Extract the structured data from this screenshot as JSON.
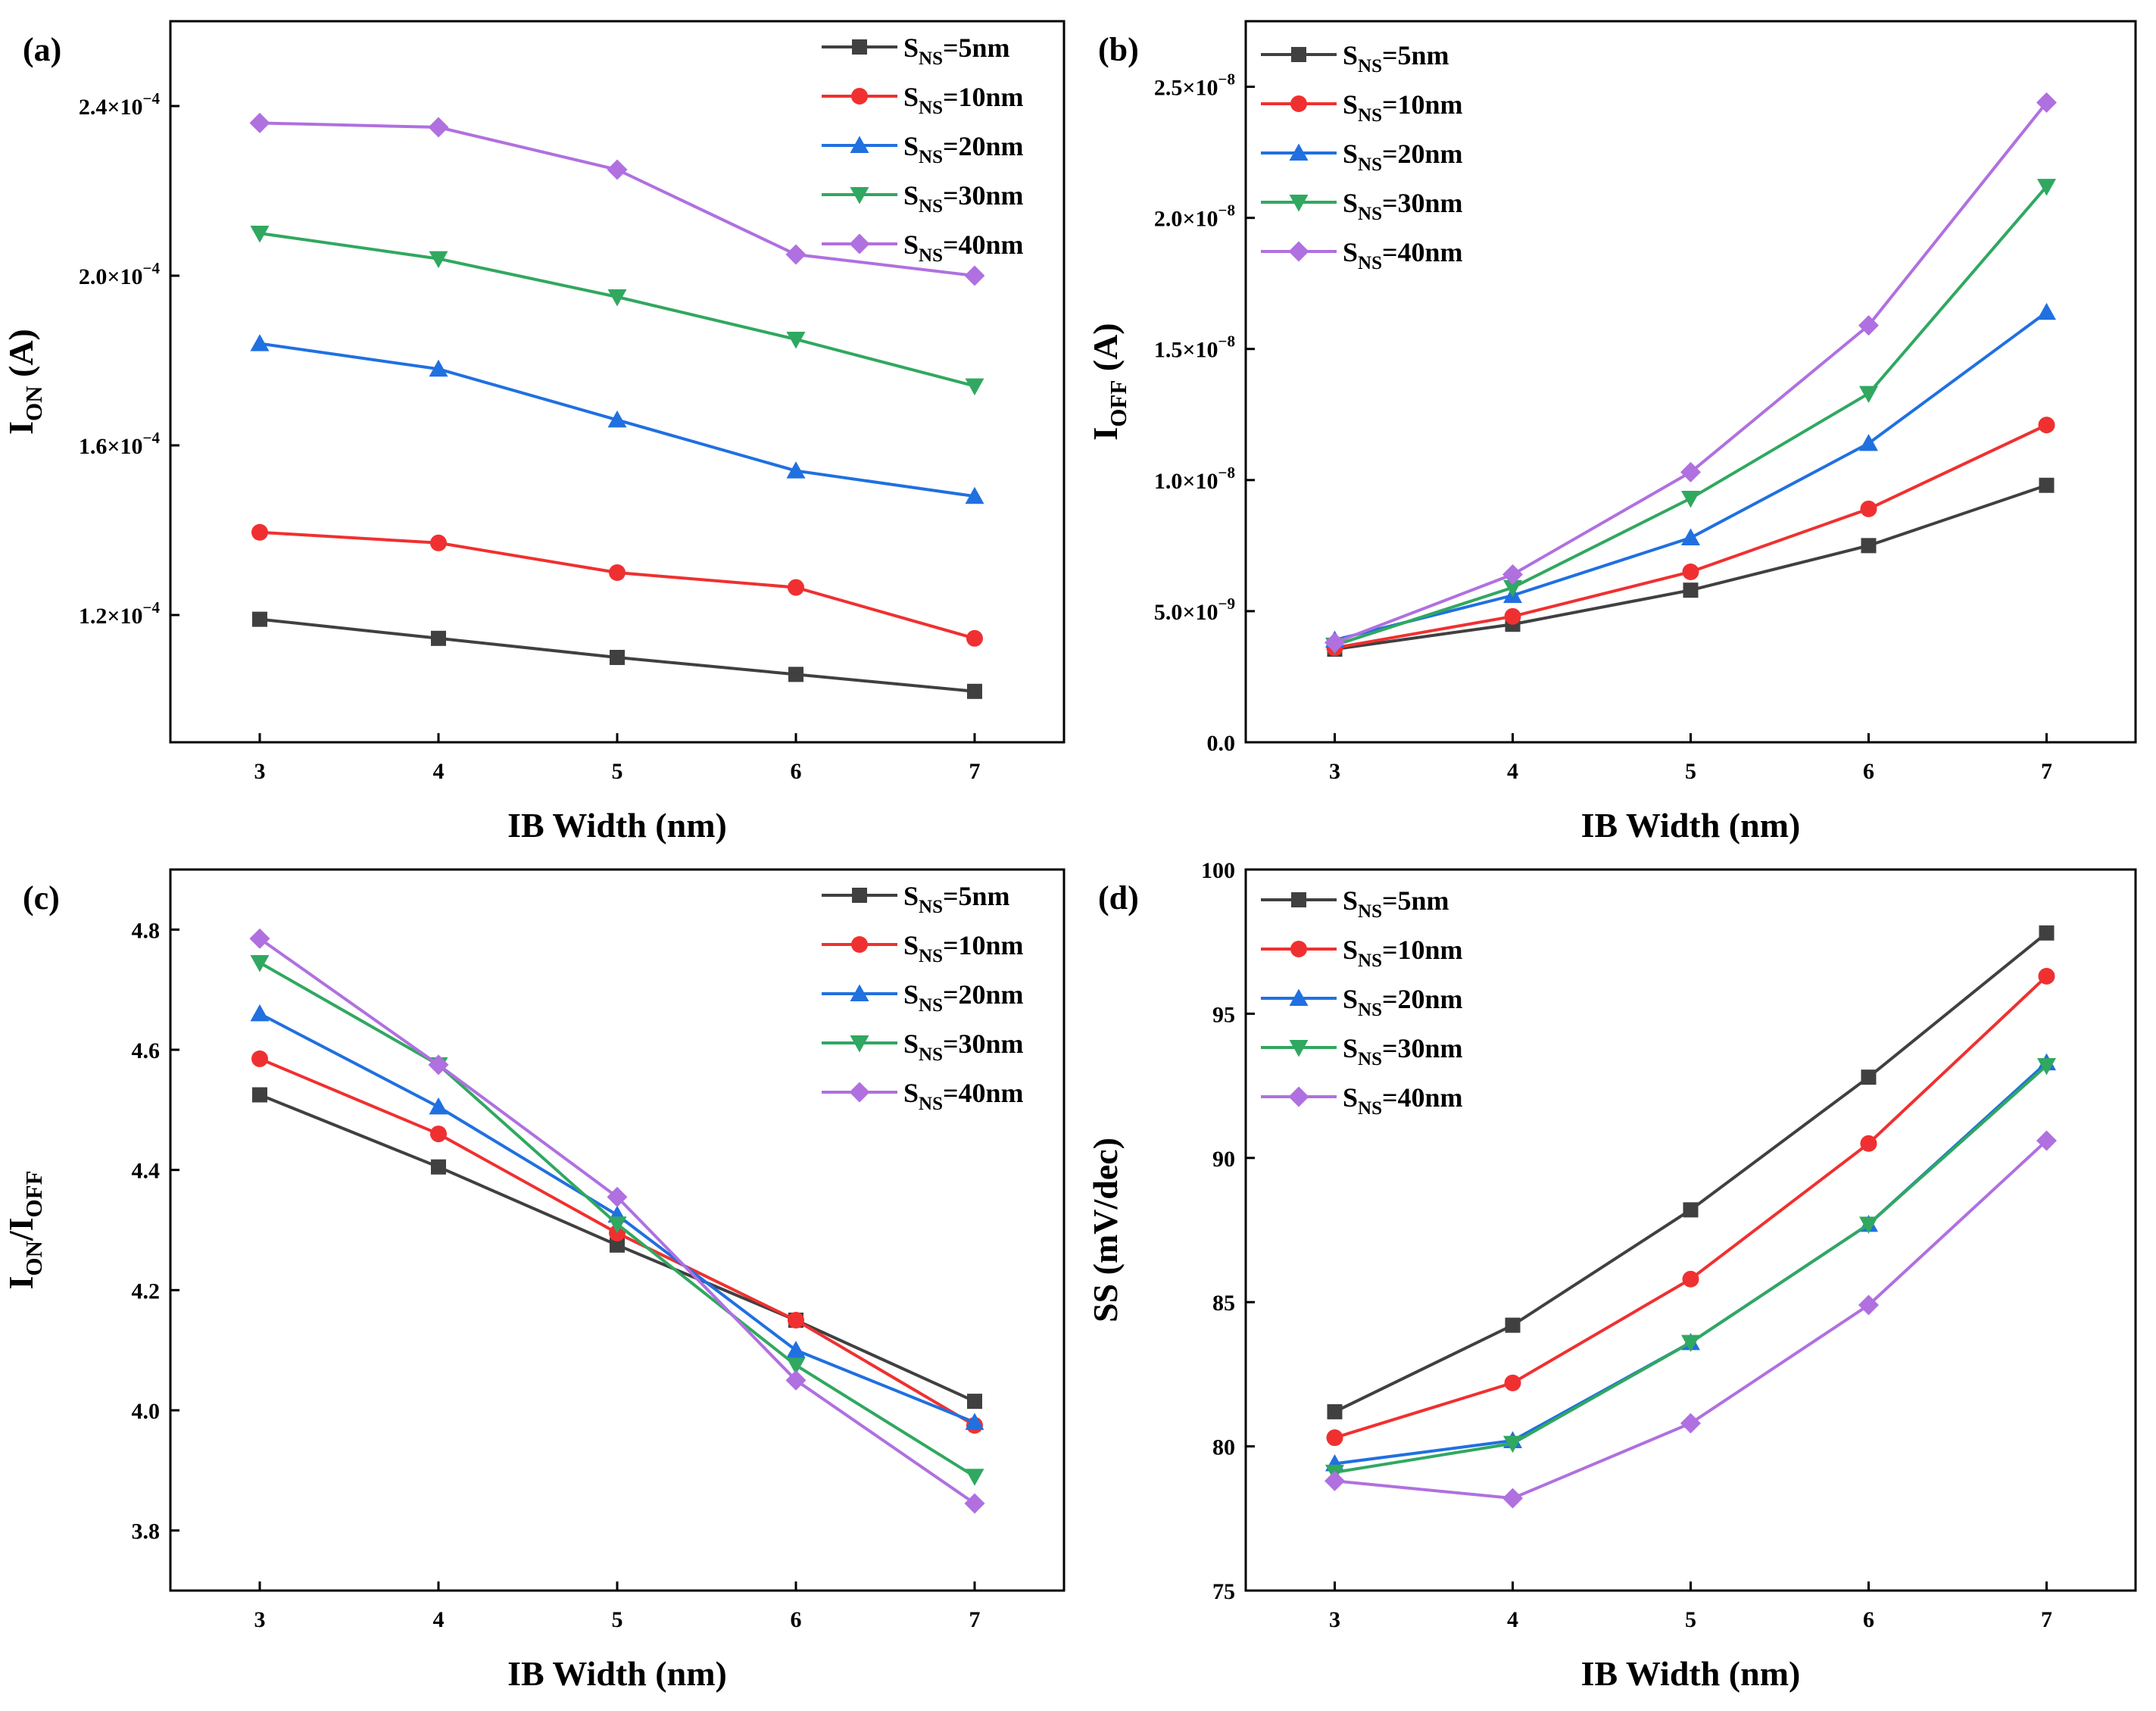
{
  "figure": {
    "colors": {
      "S_NS=5nm": "#404040",
      "S_NS=10nm": "#f03030",
      "S_NS=20nm": "#2070e0",
      "S_NS=30nm": "#30a860",
      "S_NS=40nm": "#b070e0"
    },
    "markers": {
      "S_NS=5nm": "square",
      "S_NS=10nm": "circle",
      "S_NS=20nm": "triangle-up",
      "S_NS=30nm": "triangle-down",
      "S_NS=40nm": "diamond"
    }
  },
  "chart_data": [
    {
      "id": "a",
      "panel_label": "(a)",
      "type": "line",
      "xlabel": "IB Width (nm)",
      "ylabel": "I_ON (A)",
      "ylabel_main": "I",
      "ylabel_sub": "ON",
      "ylabel_rest": " (A)",
      "x": [
        3,
        4,
        5,
        6,
        7
      ],
      "xlim": [
        2.5,
        7.5
      ],
      "ylim": [
        9e-05,
        0.00026
      ],
      "legend_position": "top-right",
      "xticks": [
        {
          "value": 3,
          "label": "3"
        },
        {
          "value": 4,
          "label": "4"
        },
        {
          "value": 5,
          "label": "5"
        },
        {
          "value": 6,
          "label": "6"
        },
        {
          "value": 7,
          "label": "7"
        }
      ],
      "yticks": [
        {
          "value": 0.00012,
          "mant": "1.2×10",
          "exp": "−4"
        },
        {
          "value": 0.00016,
          "mant": "1.6×10",
          "exp": "−4"
        },
        {
          "value": 0.0002,
          "mant": "2.0×10",
          "exp": "−4"
        },
        {
          "value": 0.00024,
          "mant": "2.4×10",
          "exp": "−4"
        }
      ],
      "series": [
        {
          "name": "S_NS=5nm",
          "label_main": "S",
          "label_sub": "NS",
          "label_rest": "=5nm",
          "values": [
            0.000119,
            0.0001145,
            0.00011,
            0.000106,
            0.000102
          ]
        },
        {
          "name": "S_NS=10nm",
          "label_main": "S",
          "label_sub": "NS",
          "label_rest": "=10nm",
          "values": [
            0.0001395,
            0.000137,
            0.00013,
            0.0001265,
            0.0001145
          ]
        },
        {
          "name": "S_NS=20nm",
          "label_main": "S",
          "label_sub": "NS",
          "label_rest": "=20nm",
          "values": [
            0.000184,
            0.000178,
            0.000166,
            0.000154,
            0.000148
          ]
        },
        {
          "name": "S_NS=30nm",
          "label_main": "S",
          "label_sub": "NS",
          "label_rest": "=30nm",
          "values": [
            0.00021,
            0.000204,
            0.000195,
            0.000185,
            0.000174
          ]
        },
        {
          "name": "S_NS=40nm",
          "label_main": "S",
          "label_sub": "NS",
          "label_rest": "=40nm",
          "values": [
            0.000236,
            0.000235,
            0.000225,
            0.000205,
            0.0002
          ]
        }
      ]
    },
    {
      "id": "b",
      "panel_label": "(b)",
      "type": "line",
      "xlabel": "IB Width (nm)",
      "ylabel": "I_OFF (A)",
      "ylabel_main": "I",
      "ylabel_sub": "OFF",
      "ylabel_rest": " (A)",
      "x": [
        3,
        4,
        5,
        6,
        7
      ],
      "xlim": [
        2.5,
        7.5
      ],
      "ylim": [
        0,
        2.75e-08
      ],
      "legend_position": "top-left",
      "xticks": [
        {
          "value": 3,
          "label": "3"
        },
        {
          "value": 4,
          "label": "4"
        },
        {
          "value": 5,
          "label": "5"
        },
        {
          "value": 6,
          "label": "6"
        },
        {
          "value": 7,
          "label": "7"
        }
      ],
      "yticks": [
        {
          "value": 0,
          "mant": "0.0",
          "exp": ""
        },
        {
          "value": 5e-09,
          "mant": "5.0×10",
          "exp": "−9"
        },
        {
          "value": 1e-08,
          "mant": "1.0×10",
          "exp": "−8"
        },
        {
          "value": 1.5e-08,
          "mant": "1.5×10",
          "exp": "−8"
        },
        {
          "value": 2e-08,
          "mant": "2.0×10",
          "exp": "−8"
        },
        {
          "value": 2.5e-08,
          "mant": "2.5×10",
          "exp": "−8"
        }
      ],
      "series": [
        {
          "name": "S_NS=5nm",
          "label_main": "S",
          "label_sub": "NS",
          "label_rest": "=5nm",
          "values": [
            3.55e-09,
            4.5e-09,
            5.8e-09,
            7.5e-09,
            9.8e-09
          ]
        },
        {
          "name": "S_NS=10nm",
          "label_main": "S",
          "label_sub": "NS",
          "label_rest": "=10nm",
          "values": [
            3.6e-09,
            4.8e-09,
            6.5e-09,
            8.9e-09,
            1.21e-08
          ]
        },
        {
          "name": "S_NS=20nm",
          "label_main": "S",
          "label_sub": "NS",
          "label_rest": "=20nm",
          "values": [
            3.9e-09,
            5.6e-09,
            7.8e-09,
            1.14e-08,
            1.64e-08
          ]
        },
        {
          "name": "S_NS=30nm",
          "label_main": "S",
          "label_sub": "NS",
          "label_rest": "=30nm",
          "values": [
            3.7e-09,
            5.9e-09,
            9.3e-09,
            1.33e-08,
            2.12e-08
          ]
        },
        {
          "name": "S_NS=40nm",
          "label_main": "S",
          "label_sub": "NS",
          "label_rest": "=40nm",
          "values": [
            3.8e-09,
            6.4e-09,
            1.03e-08,
            1.59e-08,
            2.44e-08
          ]
        }
      ]
    },
    {
      "id": "c",
      "panel_label": "(c)",
      "type": "line",
      "xlabel": "IB Width (nm)",
      "ylabel": "I_ON/I_OFF",
      "ylabel_main": "I",
      "ylabel_sub": "ON",
      "ylabel_mid": "/I",
      "ylabel_sub2": "OFF",
      "x": [
        3,
        4,
        5,
        6,
        7
      ],
      "xlim": [
        2.5,
        7.5
      ],
      "ylim": [
        3.7,
        4.9
      ],
      "legend_position": "top-right",
      "xticks": [
        {
          "value": 3,
          "label": "3"
        },
        {
          "value": 4,
          "label": "4"
        },
        {
          "value": 5,
          "label": "5"
        },
        {
          "value": 6,
          "label": "6"
        },
        {
          "value": 7,
          "label": "7"
        }
      ],
      "yticks": [
        {
          "value": 3.8,
          "mant": "3.8",
          "exp": ""
        },
        {
          "value": 4.0,
          "mant": "4.0",
          "exp": ""
        },
        {
          "value": 4.2,
          "mant": "4.2",
          "exp": ""
        },
        {
          "value": 4.4,
          "mant": "4.4",
          "exp": ""
        },
        {
          "value": 4.6,
          "mant": "4.6",
          "exp": ""
        },
        {
          "value": 4.8,
          "mant": "4.8",
          "exp": ""
        }
      ],
      "series": [
        {
          "name": "S_NS=5nm",
          "label_main": "S",
          "label_sub": "NS",
          "label_rest": "=5nm",
          "values": [
            4.525,
            4.405,
            4.275,
            4.15,
            4.015
          ]
        },
        {
          "name": "S_NS=10nm",
          "label_main": "S",
          "label_sub": "NS",
          "label_rest": "=10nm",
          "values": [
            4.585,
            4.46,
            4.295,
            4.15,
            3.975
          ]
        },
        {
          "name": "S_NS=20nm",
          "label_main": "S",
          "label_sub": "NS",
          "label_rest": "=20nm",
          "values": [
            4.66,
            4.505,
            4.325,
            4.1,
            3.98
          ]
        },
        {
          "name": "S_NS=30nm",
          "label_main": "S",
          "label_sub": "NS",
          "label_rest": "=30nm",
          "values": [
            4.745,
            4.575,
            4.31,
            4.075,
            3.89
          ]
        },
        {
          "name": "S_NS=40nm",
          "label_main": "S",
          "label_sub": "NS",
          "label_rest": "=40nm",
          "values": [
            4.785,
            4.575,
            4.355,
            4.05,
            3.845
          ]
        }
      ]
    },
    {
      "id": "d",
      "panel_label": "(d)",
      "type": "line",
      "xlabel": "IB Width (nm)",
      "ylabel": "SS (mV/dec)",
      "ylabel_main": "SS (mV/dec)",
      "x": [
        3,
        4,
        5,
        6,
        7
      ],
      "xlim": [
        2.5,
        7.5
      ],
      "ylim": [
        75,
        100
      ],
      "legend_position": "top-left",
      "xticks": [
        {
          "value": 3,
          "label": "3"
        },
        {
          "value": 4,
          "label": "4"
        },
        {
          "value": 5,
          "label": "5"
        },
        {
          "value": 6,
          "label": "6"
        },
        {
          "value": 7,
          "label": "7"
        }
      ],
      "yticks": [
        {
          "value": 75,
          "mant": "75",
          "exp": ""
        },
        {
          "value": 80,
          "mant": "80",
          "exp": ""
        },
        {
          "value": 85,
          "mant": "85",
          "exp": ""
        },
        {
          "value": 90,
          "mant": "90",
          "exp": ""
        },
        {
          "value": 95,
          "mant": "95",
          "exp": ""
        },
        {
          "value": 100,
          "mant": "100",
          "exp": ""
        }
      ],
      "series": [
        {
          "name": "S_NS=5nm",
          "label_main": "S",
          "label_sub": "NS",
          "label_rest": "=5nm",
          "values": [
            81.2,
            84.2,
            88.2,
            92.8,
            97.8
          ]
        },
        {
          "name": "S_NS=10nm",
          "label_main": "S",
          "label_sub": "NS",
          "label_rest": "=10nm",
          "values": [
            80.3,
            82.2,
            85.8,
            90.5,
            96.3
          ]
        },
        {
          "name": "S_NS=20nm",
          "label_main": "S",
          "label_sub": "NS",
          "label_rest": "=20nm",
          "values": [
            79.4,
            80.2,
            83.6,
            87.7,
            93.3
          ]
        },
        {
          "name": "S_NS=30nm",
          "label_main": "S",
          "label_sub": "NS",
          "label_rest": "=30nm",
          "values": [
            79.1,
            80.1,
            83.6,
            87.7,
            93.2
          ]
        },
        {
          "name": "S_NS=40nm",
          "label_main": "S",
          "label_sub": "NS",
          "label_rest": "=40nm",
          "values": [
            78.8,
            78.2,
            80.8,
            84.9,
            90.6
          ]
        }
      ]
    }
  ]
}
